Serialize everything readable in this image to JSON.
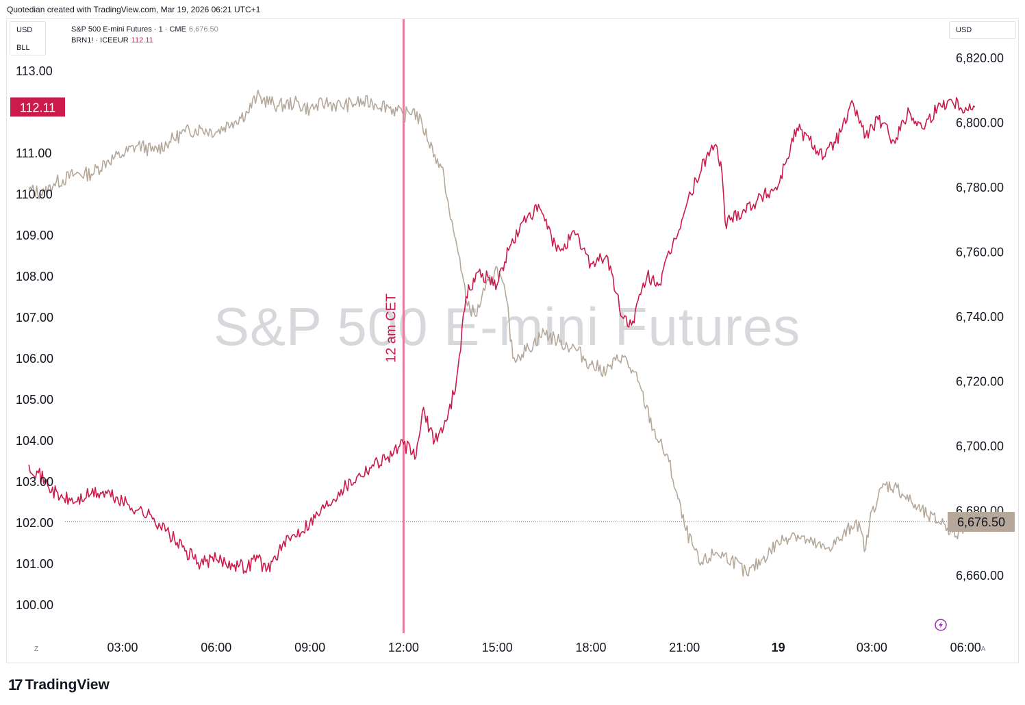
{
  "header": {
    "attribution": "Quotedian created with TradingView.com, Mar 19, 2026 06:21 UTC+1"
  },
  "left_scale": {
    "unit": "USD",
    "unit2": "BLL"
  },
  "right_scale": {
    "unit": "USD"
  },
  "legend": [
    {
      "name": "S&P 500 E-mini Futures · 1 · CME",
      "value": "6,676.50",
      "color": "#b5a89a"
    },
    {
      "name": "BRN1! · ICEEUR",
      "value": "112.11",
      "color": "#cc1a4a"
    }
  ],
  "watermark": "S&P 500 E-mini Futures",
  "annotation": {
    "label": "12 am CET",
    "color": "#e8799f"
  },
  "badges": {
    "left_last": "112.11",
    "right_last": "6,676.50"
  },
  "footer": {
    "brand": "TradingView",
    "z_button": "Z",
    "a_button": "A"
  },
  "colors": {
    "spx": "#b5a89a",
    "brent": "#cc1a4a",
    "badge_left": "#cc1a4a",
    "badge_right": "#b5a89a"
  },
  "icons": {
    "lightning": "lightning-icon"
  },
  "chart_data": {
    "type": "line",
    "x_tick_labels": [
      "03:00",
      "06:00",
      "09:00",
      "12:00",
      "15:00",
      "18:00",
      "21:00",
      "19",
      "03:00",
      "06:00"
    ],
    "x_hours": [
      3,
      6,
      9,
      12,
      15,
      18,
      21,
      24,
      27,
      30
    ],
    "x_unit": "hours from Mar 18 00:00",
    "y_left": {
      "ticks": [
        100,
        101,
        102,
        103,
        104,
        105,
        106,
        107,
        108,
        109,
        110,
        111,
        112,
        113
      ],
      "labels": [
        "100.00",
        "101.00",
        "102.00",
        "103.00",
        "104.00",
        "105.00",
        "106.00",
        "107.00",
        "108.00",
        "109.00",
        "110.00",
        "111.00",
        "112.00",
        "113.00"
      ]
    },
    "y_right": {
      "ticks": [
        6660,
        6680,
        6700,
        6720,
        6740,
        6760,
        6780,
        6800,
        6820
      ],
      "labels": [
        "6,660.00",
        "6,680.00",
        "6,700.00",
        "6,720.00",
        "6,740.00",
        "6,760.00",
        "6,780.00",
        "6,800.00",
        "6,820.00"
      ]
    },
    "vline_hour": 12.0,
    "hline_right": 6676.5,
    "series": [
      {
        "name": "S&P 500 E-mini Futures · 1 · CME",
        "axis": "right",
        "points": [
          [
            0.0,
            6779
          ],
          [
            0.5,
            6778
          ],
          [
            0.8,
            6781
          ],
          [
            1.5,
            6784
          ],
          [
            2.0,
            6784
          ],
          [
            2.5,
            6788
          ],
          [
            3.0,
            6790
          ],
          [
            3.5,
            6793
          ],
          [
            4.0,
            6791
          ],
          [
            4.5,
            6794
          ],
          [
            5.0,
            6797
          ],
          [
            5.5,
            6798
          ],
          [
            6.0,
            6797
          ],
          [
            6.5,
            6800
          ],
          [
            7.0,
            6803
          ],
          [
            7.3,
            6808
          ],
          [
            7.5,
            6807
          ],
          [
            8.0,
            6805
          ],
          [
            8.5,
            6806
          ],
          [
            9.0,
            6804
          ],
          [
            9.5,
            6806
          ],
          [
            10.0,
            6805
          ],
          [
            10.5,
            6806
          ],
          [
            11.0,
            6806
          ],
          [
            11.5,
            6805
          ],
          [
            12.0,
            6802
          ],
          [
            12.3,
            6804
          ],
          [
            12.6,
            6799
          ],
          [
            13.0,
            6790
          ],
          [
            13.3,
            6783
          ],
          [
            13.5,
            6770
          ],
          [
            13.8,
            6758
          ],
          [
            14.0,
            6745
          ],
          [
            14.3,
            6740
          ],
          [
            14.6,
            6748
          ],
          [
            15.0,
            6755
          ],
          [
            15.3,
            6745
          ],
          [
            15.5,
            6727
          ],
          [
            16.0,
            6730
          ],
          [
            16.5,
            6735
          ],
          [
            17.0,
            6732
          ],
          [
            17.5,
            6730
          ],
          [
            18.0,
            6725
          ],
          [
            18.5,
            6723
          ],
          [
            19.0,
            6728
          ],
          [
            19.5,
            6720
          ],
          [
            20.0,
            6705
          ],
          [
            20.5,
            6695
          ],
          [
            21.0,
            6675
          ],
          [
            21.5,
            6663
          ],
          [
            22.0,
            6667
          ],
          [
            22.5,
            6665
          ],
          [
            23.0,
            6660
          ],
          [
            23.5,
            6665
          ],
          [
            24.0,
            6670
          ],
          [
            24.5,
            6673
          ],
          [
            25.0,
            6670
          ],
          [
            25.5,
            6668
          ],
          [
            26.0,
            6671
          ],
          [
            26.5,
            6677
          ],
          [
            26.8,
            6668
          ],
          [
            27.0,
            6680
          ],
          [
            27.4,
            6688
          ],
          [
            27.8,
            6687
          ],
          [
            28.3,
            6682
          ],
          [
            28.8,
            6678
          ],
          [
            29.3,
            6676
          ],
          [
            29.7,
            6672
          ],
          [
            30.0,
            6676
          ],
          [
            30.3,
            6676.5
          ]
        ]
      },
      {
        "name": "BRN1! · ICEEUR",
        "axis": "left",
        "points": [
          [
            0.0,
            103.4
          ],
          [
            0.3,
            103.2
          ],
          [
            0.6,
            102.9
          ],
          [
            1.0,
            102.6
          ],
          [
            1.5,
            102.5
          ],
          [
            2.0,
            102.7
          ],
          [
            2.5,
            102.7
          ],
          [
            3.0,
            102.5
          ],
          [
            3.5,
            102.3
          ],
          [
            4.0,
            102.1
          ],
          [
            4.5,
            101.7
          ],
          [
            5.0,
            101.3
          ],
          [
            5.5,
            101.0
          ],
          [
            6.0,
            101.1
          ],
          [
            6.5,
            101.0
          ],
          [
            7.0,
            100.9
          ],
          [
            7.3,
            101.2
          ],
          [
            7.6,
            100.8
          ],
          [
            8.0,
            101.3
          ],
          [
            8.5,
            101.7
          ],
          [
            9.0,
            102.0
          ],
          [
            9.5,
            102.4
          ],
          [
            10.0,
            102.8
          ],
          [
            10.5,
            103.1
          ],
          [
            11.0,
            103.4
          ],
          [
            11.5,
            103.6
          ],
          [
            12.0,
            103.9
          ],
          [
            12.4,
            103.6
          ],
          [
            12.6,
            104.7
          ],
          [
            13.0,
            104.0
          ],
          [
            13.4,
            104.5
          ],
          [
            13.7,
            105.5
          ],
          [
            14.0,
            107.5
          ],
          [
            14.4,
            108.1
          ],
          [
            15.0,
            107.8
          ],
          [
            15.4,
            108.7
          ],
          [
            16.0,
            109.5
          ],
          [
            16.4,
            109.6
          ],
          [
            16.9,
            108.6
          ],
          [
            17.5,
            109.0
          ],
          [
            18.0,
            108.3
          ],
          [
            18.5,
            108.5
          ],
          [
            19.0,
            107.0
          ],
          [
            19.3,
            106.8
          ],
          [
            19.8,
            108.0
          ],
          [
            20.2,
            107.8
          ],
          [
            20.7,
            108.9
          ],
          [
            21.2,
            110.0
          ],
          [
            21.7,
            110.9
          ],
          [
            22.0,
            111.2
          ],
          [
            22.2,
            110.5
          ],
          [
            22.3,
            109.3
          ],
          [
            24.0,
            110.2
          ],
          [
            24.2,
            110.7
          ],
          [
            24.6,
            111.6
          ],
          [
            25.0,
            111.3
          ],
          [
            25.5,
            110.9
          ],
          [
            26.0,
            111.5
          ],
          [
            26.4,
            112.2
          ],
          [
            26.8,
            111.4
          ],
          [
            27.2,
            111.8
          ],
          [
            27.7,
            111.3
          ],
          [
            28.2,
            112.0
          ],
          [
            28.6,
            111.6
          ],
          [
            29.1,
            112.1
          ],
          [
            29.5,
            112.3
          ],
          [
            30.0,
            112.1
          ],
          [
            30.3,
            112.11
          ]
        ]
      }
    ]
  }
}
